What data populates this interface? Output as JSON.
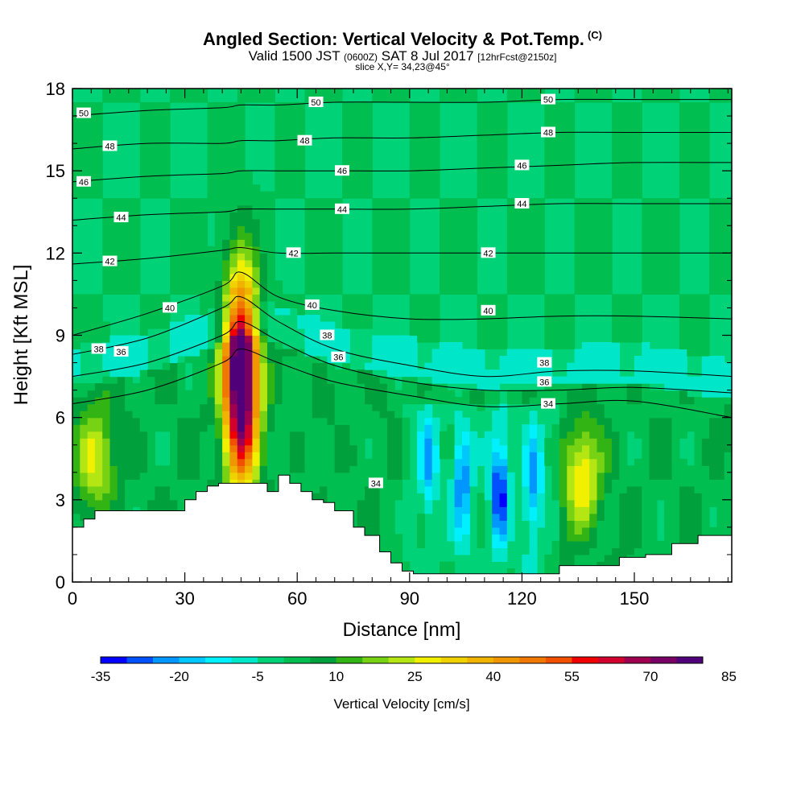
{
  "title": {
    "main": "Angled Section: Vertical Velocity & Pot.Temp.",
    "units_tag": "(C)",
    "valid_prefix": "Valid 1500 JST",
    "utc_tag": "(0600Z)",
    "valid_date": "SAT 8 Jul 2017",
    "forecast_tag": "[12hrFcst@2150z]",
    "slice": "slice X,Y= 34,23@45°"
  },
  "chart_data": {
    "type": "heatmap",
    "xlabel": "Distance [nm]",
    "ylabel": "Height [Kft MSL]",
    "xlim": [
      0,
      176
    ],
    "ylim": [
      0,
      18
    ],
    "x_ticks": [
      0,
      30,
      60,
      90,
      120,
      150
    ],
    "y_ticks": [
      0,
      3,
      6,
      9,
      12,
      15,
      18
    ],
    "colorbar": {
      "label": "Vertical Velocity [cm/s]",
      "tick_values": [
        -35,
        -20,
        -5,
        10,
        25,
        40,
        55,
        70,
        85
      ],
      "min": -35,
      "step": 5,
      "colors": [
        "#0000ff",
        "#0050ff",
        "#0096ff",
        "#00c8ff",
        "#00f0ff",
        "#00e6c8",
        "#00d278",
        "#00be50",
        "#00a03c",
        "#32b414",
        "#78d214",
        "#b4e614",
        "#f0f000",
        "#f0d200",
        "#f0b400",
        "#f09600",
        "#f07800",
        "#f05000",
        "#f00000",
        "#d2002d",
        "#a00050",
        "#780064",
        "#500078"
      ]
    },
    "terrain_profile": {
      "x": [
        0,
        3,
        6,
        10,
        30,
        33,
        36,
        39,
        42,
        45,
        48,
        52,
        55,
        58,
        61,
        64,
        67,
        70,
        75,
        78,
        82,
        85,
        88,
        91,
        130,
        143,
        146,
        153,
        160,
        167,
        176
      ],
      "height_kft": [
        2.0,
        2.3,
        2.6,
        2.6,
        3.0,
        3.3,
        3.5,
        3.6,
        3.6,
        3.6,
        3.6,
        3.3,
        3.9,
        3.6,
        3.3,
        3.0,
        2.9,
        2.6,
        2.0,
        1.7,
        1.1,
        0.7,
        0.4,
        0.3,
        0.6,
        0.6,
        0.9,
        1.0,
        1.4,
        1.7,
        1.7
      ]
    },
    "updrafts": [
      {
        "x": 45,
        "height_kft": 7.5,
        "peak_cm_s": 90
      },
      {
        "x": 136,
        "height_kft": 3.8,
        "peak_cm_s": 27
      },
      {
        "x": 6,
        "height_kft": 4.6,
        "peak_cm_s": 23
      }
    ],
    "downdrafts": [
      {
        "x": 114,
        "height_kft": 3.2,
        "peak_cm_s": -33
      },
      {
        "x": 104,
        "height_kft": 3.8,
        "peak_cm_s": -25
      },
      {
        "x": 123,
        "height_kft": 3.8,
        "peak_cm_s": -22
      },
      {
        "x": 95,
        "height_kft": 4.2,
        "peak_cm_s": -18
      }
    ],
    "theta_contours": [
      {
        "value": 34,
        "x": [
          0,
          20,
          40,
          45,
          55,
          70,
          90,
          110,
          130,
          150,
          176
        ],
        "height_kft": [
          6.5,
          7.0,
          8.0,
          8.5,
          8.0,
          7.3,
          6.8,
          6.4,
          6.5,
          6.6,
          6.0
        ]
      },
      {
        "value": 36,
        "x": [
          0,
          20,
          40,
          45,
          55,
          70,
          90,
          110,
          130,
          150,
          176
        ],
        "height_kft": [
          7.5,
          8.0,
          9.0,
          9.5,
          8.8,
          7.9,
          7.3,
          7.0,
          7.0,
          7.1,
          6.9
        ]
      },
      {
        "value": 38,
        "x": [
          0,
          20,
          40,
          45,
          55,
          70,
          90,
          110,
          130,
          150,
          176
        ],
        "height_kft": [
          8.3,
          8.9,
          10.0,
          10.4,
          9.5,
          8.5,
          7.9,
          7.5,
          7.7,
          7.7,
          7.5
        ]
      },
      {
        "value": 40,
        "x": [
          0,
          20,
          40,
          45,
          55,
          70,
          90,
          110,
          130,
          150,
          176
        ],
        "height_kft": [
          9.0,
          9.8,
          10.8,
          11.3,
          10.4,
          9.9,
          9.6,
          9.6,
          9.7,
          9.7,
          9.6
        ]
      },
      {
        "value": 42,
        "x": [
          0,
          20,
          40,
          45,
          55,
          70,
          90,
          110,
          130,
          150,
          176
        ],
        "height_kft": [
          11.6,
          11.8,
          12.1,
          12.2,
          12.0,
          12.0,
          12.0,
          12.0,
          12.0,
          12.0,
          12.0
        ]
      },
      {
        "value": 44,
        "x": [
          0,
          20,
          40,
          45,
          55,
          70,
          90,
          110,
          130,
          150,
          176
        ],
        "height_kft": [
          13.2,
          13.4,
          13.5,
          13.6,
          13.6,
          13.6,
          13.6,
          13.7,
          13.8,
          13.8,
          13.8
        ]
      },
      {
        "value": 46,
        "x": [
          0,
          20,
          40,
          45,
          55,
          70,
          90,
          110,
          130,
          150,
          176
        ],
        "height_kft": [
          14.6,
          14.8,
          14.9,
          15.0,
          15.0,
          15.0,
          15.0,
          15.1,
          15.2,
          15.3,
          15.3
        ]
      },
      {
        "value": 48,
        "x": [
          0,
          20,
          40,
          45,
          55,
          70,
          90,
          110,
          130,
          150,
          176
        ],
        "height_kft": [
          15.8,
          16.0,
          16.0,
          16.1,
          16.1,
          16.2,
          16.2,
          16.3,
          16.4,
          16.4,
          16.4
        ]
      },
      {
        "value": 50,
        "x": [
          0,
          20,
          40,
          45,
          55,
          70,
          90,
          110,
          130,
          150,
          176
        ],
        "height_kft": [
          17.0,
          17.2,
          17.3,
          17.4,
          17.4,
          17.5,
          17.5,
          17.5,
          17.6,
          17.6,
          17.6
        ]
      }
    ],
    "contour_labels": [
      {
        "text": "50",
        "x": 3,
        "height_kft": 17.1
      },
      {
        "text": "50",
        "x": 65,
        "height_kft": 17.5
      },
      {
        "text": "50",
        "x": 127,
        "height_kft": 17.6
      },
      {
        "text": "48",
        "x": 10,
        "height_kft": 15.9
      },
      {
        "text": "48",
        "x": 62,
        "height_kft": 16.1
      },
      {
        "text": "48",
        "x": 127,
        "height_kft": 16.4
      },
      {
        "text": "46",
        "x": 3,
        "height_kft": 14.6
      },
      {
        "text": "46",
        "x": 72,
        "height_kft": 15.0
      },
      {
        "text": "46",
        "x": 120,
        "height_kft": 15.2
      },
      {
        "text": "44",
        "x": 13,
        "height_kft": 13.3
      },
      {
        "text": "44",
        "x": 72,
        "height_kft": 13.6
      },
      {
        "text": "44",
        "x": 120,
        "height_kft": 13.8
      },
      {
        "text": "42",
        "x": 10,
        "height_kft": 11.7
      },
      {
        "text": "42",
        "x": 59,
        "height_kft": 12.0
      },
      {
        "text": "42",
        "x": 111,
        "height_kft": 12.0
      },
      {
        "text": "40",
        "x": 26,
        "height_kft": 10.0
      },
      {
        "text": "40",
        "x": 64,
        "height_kft": 10.1
      },
      {
        "text": "40",
        "x": 111,
        "height_kft": 9.9
      },
      {
        "text": "38",
        "x": 7,
        "height_kft": 8.5
      },
      {
        "text": "38",
        "x": 68,
        "height_kft": 9.0
      },
      {
        "text": "38",
        "x": 126,
        "height_kft": 8.0
      },
      {
        "text": "36",
        "x": 13,
        "height_kft": 8.4
      },
      {
        "text": "36",
        "x": 71,
        "height_kft": 8.2
      },
      {
        "text": "36",
        "x": 126,
        "height_kft": 7.3
      },
      {
        "text": "34",
        "x": 81,
        "height_kft": 3.6
      },
      {
        "text": "34",
        "x": 127,
        "height_kft": 6.5
      }
    ]
  }
}
